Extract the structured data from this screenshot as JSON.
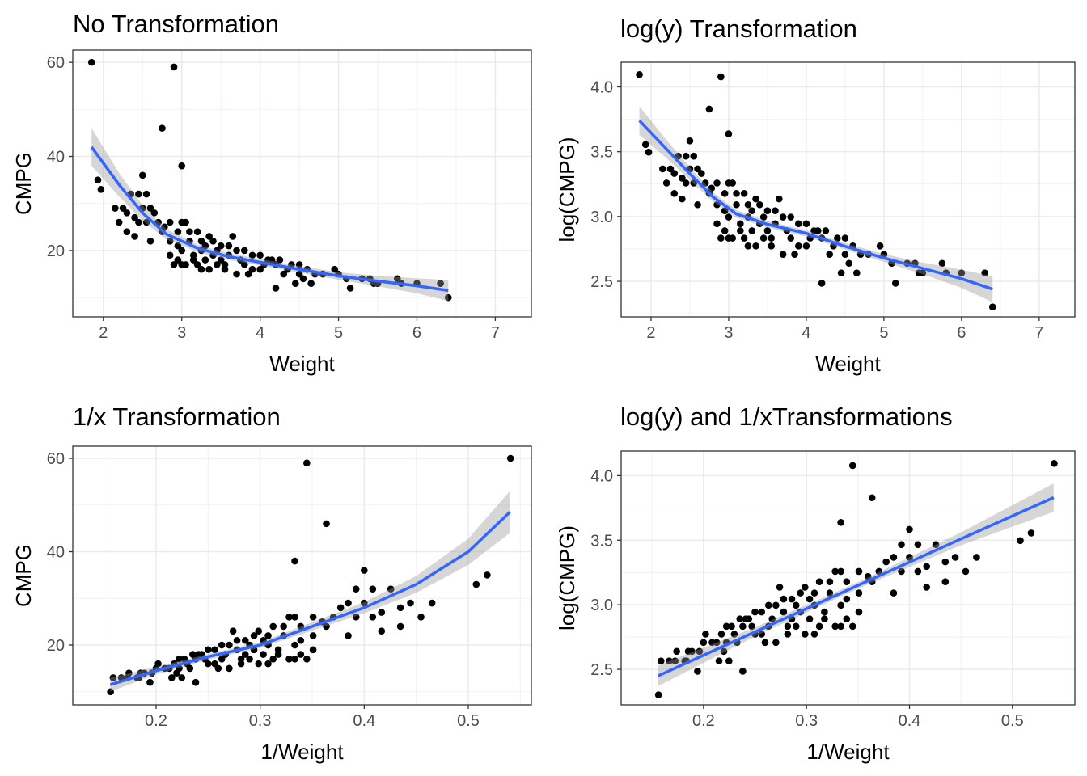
{
  "observations": {
    "weight": [
      1.85,
      2.9,
      2.75,
      3.0,
      2.5,
      1.93,
      1.97,
      2.2,
      2.55,
      2.35,
      2.45,
      2.15,
      2.25,
      2.3,
      2.4,
      2.5,
      2.6,
      2.65,
      2.3,
      2.45,
      2.55,
      2.7,
      2.75,
      2.6,
      2.4,
      2.85,
      3.0,
      3.05,
      2.78,
      2.95,
      3.1,
      3.2,
      3.35,
      2.85,
      2.95,
      3.0,
      3.1,
      3.25,
      3.4,
      3.5,
      3.6,
      3.65,
      3.7,
      2.85,
      2.95,
      3.05,
      3.2,
      3.3,
      3.4,
      3.5,
      3.55,
      3.6,
      3.8,
      3.9,
      4.0,
      4.1,
      3.8,
      3.9,
      4.0,
      4.2,
      4.25,
      4.4,
      4.5,
      4.6,
      3.7,
      3.85,
      4.3,
      4.5,
      4.55,
      4.45,
      4.65,
      4.8,
      4.95,
      5.0,
      5.1,
      5.3,
      5.4,
      5.5,
      5.45,
      5.75,
      5.8,
      6.0,
      6.3,
      5.15,
      4.2,
      6.4,
      3.25,
      3.35,
      3.45,
      3.75,
      4.35,
      4.7,
      3.15,
      3.25,
      3.45,
      3.3,
      2.9,
      3.0,
      3.15,
      3.55,
      4.05,
      4.15
    ],
    "cmpg": [
      60,
      59,
      46,
      38,
      36,
      35,
      33,
      26,
      32,
      32,
      32,
      29,
      29,
      28,
      27,
      29,
      29,
      28,
      24,
      26,
      26,
      26,
      24,
      22,
      23,
      26,
      26,
      26,
      25,
      24,
      24,
      24,
      23,
      22,
      21,
      20,
      22,
      22,
      22,
      21,
      21,
      23,
      20,
      19,
      18,
      17,
      17,
      18,
      19,
      18,
      17,
      19,
      20,
      19,
      19,
      18,
      17,
      16,
      16,
      17,
      18,
      17,
      17,
      16,
      15,
      15,
      15,
      15,
      14,
      13,
      13,
      15,
      16,
      15,
      14,
      14,
      14,
      13,
      13,
      14,
      13,
      13,
      13,
      12,
      12,
      10,
      16,
      16,
      17,
      18,
      16,
      15,
      19,
      20,
      20,
      21,
      17,
      17,
      18,
      16,
      17,
      18
    ]
  },
  "chart_data": [
    {
      "type": "scatter",
      "title": "No Transformation",
      "xlabel": "Weight",
      "ylabel": "CMPG",
      "x_transform": "x",
      "y_transform": "y",
      "xlim": [
        1.61,
        7.46
      ],
      "ylim": [
        5.9,
        62.6
      ],
      "xticks": [
        2,
        3,
        4,
        5,
        6,
        7
      ],
      "yticks": [
        20,
        40,
        60
      ],
      "xtick_labels": [
        "2",
        "3",
        "4",
        "5",
        "6",
        "7"
      ],
      "ytick_labels": [
        "20",
        "40",
        "60"
      ],
      "grid": true,
      "smooth": {
        "type": "loess",
        "color": "#3366FF",
        "x": [
          1.85,
          2.2,
          2.5,
          2.8,
          3.2,
          3.6,
          4.0,
          4.5,
          5.0,
          5.5,
          6.0,
          6.4
        ],
        "y": [
          42,
          34,
          28,
          23.5,
          20.5,
          18.7,
          17.5,
          16,
          14.6,
          13.5,
          12.5,
          11.5
        ],
        "se": [
          4,
          2.5,
          1.6,
          1.1,
          0.8,
          0.7,
          0.7,
          0.7,
          0.8,
          1.1,
          1.6,
          2.2
        ]
      }
    },
    {
      "type": "scatter",
      "title": "log(y) Transformation",
      "xlabel": "Weight",
      "ylabel": "log(CMPG)",
      "x_transform": "x",
      "y_transform": "log(y)",
      "xlim": [
        1.615,
        7.46
      ],
      "ylim": [
        2.226,
        4.19
      ],
      "xticks": [
        2,
        3,
        4,
        5,
        6,
        7
      ],
      "yticks": [
        2.5,
        3.0,
        3.5,
        4.0
      ],
      "xtick_labels": [
        "2",
        "3",
        "4",
        "5",
        "6",
        "7"
      ],
      "ytick_labels": [
        "2.5",
        "3.0",
        "3.5",
        "4.0"
      ],
      "grid": true,
      "smooth": {
        "type": "loess",
        "color": "#3366FF",
        "x": [
          1.85,
          2.2,
          2.5,
          2.8,
          3.1,
          3.5,
          4.0,
          4.5,
          5.0,
          5.5,
          6.0,
          6.4
        ],
        "y": [
          3.74,
          3.52,
          3.33,
          3.15,
          3.02,
          2.94,
          2.87,
          2.77,
          2.68,
          2.6,
          2.52,
          2.44
        ],
        "se": [
          0.11,
          0.07,
          0.05,
          0.035,
          0.03,
          0.025,
          0.025,
          0.025,
          0.03,
          0.045,
          0.07,
          0.1
        ]
      }
    },
    {
      "type": "scatter",
      "title": "1/x Transformation",
      "xlabel": "1/Weight",
      "ylabel": "CMPG",
      "x_transform": "1/x",
      "y_transform": "y",
      "xlim": [
        0.12,
        0.5606
      ],
      "ylim": [
        7.19,
        62.6
      ],
      "xticks": [
        0.2,
        0.3,
        0.4,
        0.5
      ],
      "yticks": [
        20,
        40,
        60
      ],
      "xtick_labels": [
        "0.2",
        "0.3",
        "0.4",
        "0.5"
      ],
      "ytick_labels": [
        "20",
        "40",
        "60"
      ],
      "grid": true,
      "smooth": {
        "type": "loess",
        "color": "#3366FF",
        "x": [
          0.156,
          0.2,
          0.25,
          0.3,
          0.35,
          0.4,
          0.45,
          0.5,
          0.54
        ],
        "y": [
          11.5,
          14.5,
          17.5,
          20,
          24,
          28,
          33,
          40,
          48.5
        ],
        "se": [
          1.5,
          0.8,
          0.6,
          0.6,
          0.9,
          1.2,
          1.8,
          2.8,
          4.5
        ]
      }
    },
    {
      "type": "scatter",
      "title": "log(y) and 1/xTransformations",
      "xlabel": "1/Weight",
      "ylabel": "log(CMPG)",
      "x_transform": "1/x",
      "y_transform": "log(y)",
      "xlim": [
        0.12,
        0.5606
      ],
      "ylim": [
        2.225,
        4.19
      ],
      "xticks": [
        0.2,
        0.3,
        0.4,
        0.5
      ],
      "yticks": [
        2.5,
        3.0,
        3.5,
        4.0
      ],
      "xtick_labels": [
        "0.2",
        "0.3",
        "0.4",
        "0.5"
      ],
      "ytick_labels": [
        "2.5",
        "3.0",
        "3.5",
        "4.0"
      ],
      "grid": true,
      "smooth": {
        "type": "lm",
        "color": "#3366FF",
        "x": [
          0.156,
          0.25,
          0.35,
          0.45,
          0.54
        ],
        "y": [
          2.45,
          2.79,
          3.15,
          3.51,
          3.83
        ],
        "se": [
          0.08,
          0.035,
          0.025,
          0.05,
          0.11
        ]
      }
    }
  ]
}
